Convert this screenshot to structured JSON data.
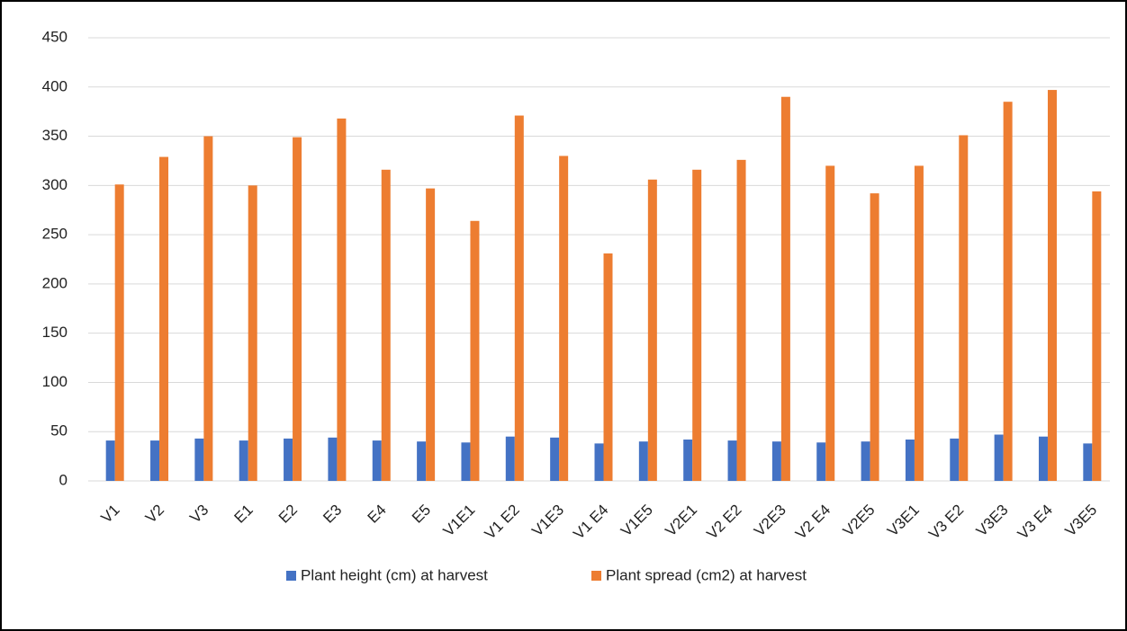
{
  "chart_data": {
    "type": "bar",
    "categories": [
      "V1",
      "V2",
      "V3",
      "E1",
      "E2",
      "E3",
      "E4",
      "E5",
      "V1E1",
      "V1 E2",
      "V1E3",
      "V1 E4",
      "V1E5",
      "V2E1",
      "V2 E2",
      "V2E3",
      "V2 E4",
      "V2E5",
      "V3E1",
      "V3 E2",
      "V3E3",
      "V3 E4",
      "V3E5"
    ],
    "series": [
      {
        "name": "Plant height (cm) at harvest",
        "color": "#4472c4",
        "values": [
          41,
          41,
          43,
          41,
          43,
          44,
          41,
          40,
          39,
          45,
          44,
          38,
          40,
          42,
          41,
          40,
          39,
          40,
          42,
          43,
          47,
          45,
          38
        ]
      },
      {
        "name": "Plant spread (cm2) at harvest",
        "color": "#ed7d31",
        "values": [
          301,
          329,
          350,
          300,
          349,
          368,
          316,
          297,
          264,
          371,
          330,
          231,
          306,
          316,
          326,
          390,
          320,
          292,
          320,
          351,
          385,
          397,
          294
        ]
      }
    ],
    "ylim": [
      0,
      450
    ],
    "yticks": [
      0,
      50,
      100,
      150,
      200,
      250,
      300,
      350,
      400,
      450
    ],
    "grid": true,
    "legend": "bottom"
  }
}
